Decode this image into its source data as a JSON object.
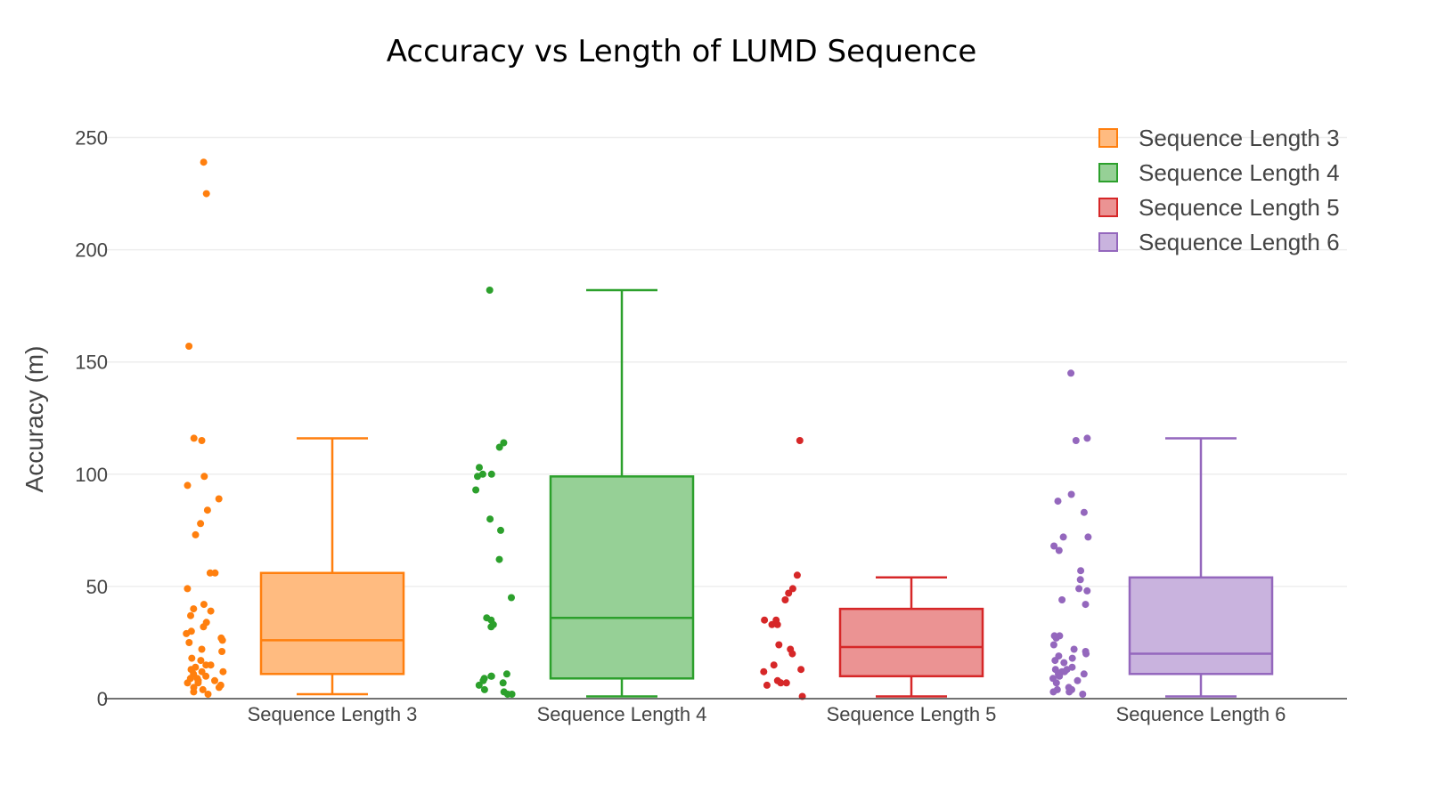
{
  "chart_data": {
    "type": "box",
    "title": "Accuracy vs Length of LUMD Sequence",
    "xlabel": "",
    "ylabel": "Accuracy (m)",
    "ylim": [
      0,
      260
    ],
    "yticks": [
      0,
      50,
      100,
      150,
      200,
      250
    ],
    "grid": true,
    "legend_position": "top-right",
    "categories": [
      "Sequence Length 3",
      "Sequence Length 4",
      "Sequence Length 5",
      "Sequence Length 6"
    ],
    "series": [
      {
        "name": "Sequence Length 3",
        "color": "#ff7f0e",
        "fill": "#ffbb80",
        "box": {
          "min": 2,
          "q1": 11,
          "median": 26,
          "q3": 56,
          "max": 116
        },
        "points": [
          239,
          225,
          157,
          116,
          115,
          99,
          95,
          89,
          84,
          78,
          73,
          56,
          56,
          49,
          42,
          40,
          39,
          37,
          34,
          32,
          30,
          29,
          27,
          26,
          25,
          22,
          21,
          18,
          17,
          15,
          15,
          14,
          13,
          12,
          12,
          11,
          10,
          9,
          9,
          8,
          8,
          7,
          7,
          6,
          5,
          5,
          4,
          3,
          2
        ]
      },
      {
        "name": "Sequence Length 4",
        "color": "#2ca02c",
        "fill": "#96d096",
        "box": {
          "min": 1,
          "q1": 9,
          "median": 36,
          "q3": 99,
          "max": 182
        },
        "points": [
          182,
          114,
          112,
          103,
          100,
          100,
          99,
          93,
          80,
          75,
          62,
          45,
          36,
          35,
          33,
          32,
          11,
          10,
          10,
          9,
          8,
          7,
          6,
          4,
          3,
          2,
          2
        ]
      },
      {
        "name": "Sequence Length 5",
        "color": "#d62728",
        "fill": "#eb9393",
        "box": {
          "min": 1,
          "q1": 10,
          "median": 23,
          "q3": 40,
          "max": 54
        },
        "points": [
          115,
          55,
          49,
          47,
          44,
          35,
          35,
          33,
          33,
          24,
          22,
          20,
          15,
          13,
          12,
          8,
          7,
          7,
          6,
          1
        ]
      },
      {
        "name": "Sequence Length 6",
        "color": "#9467bd",
        "fill": "#c9b3de",
        "box": {
          "min": 1,
          "q1": 11,
          "median": 20,
          "q3": 54,
          "max": 116
        },
        "points": [
          145,
          116,
          115,
          91,
          88,
          83,
          72,
          72,
          68,
          66,
          57,
          53,
          49,
          48,
          44,
          42,
          28,
          28,
          27,
          24,
          22,
          21,
          20,
          19,
          18,
          17,
          16,
          14,
          13,
          13,
          12,
          12,
          11,
          11,
          10,
          9,
          8,
          7,
          5,
          4,
          4,
          3,
          3,
          2
        ]
      }
    ]
  }
}
